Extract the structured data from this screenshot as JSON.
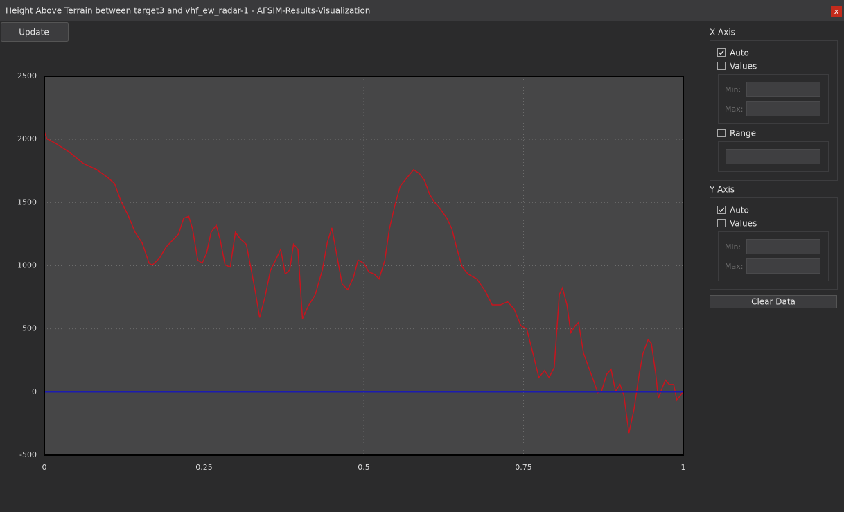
{
  "window": {
    "title": "Height Above Terrain between target3 and vhf_ew_radar-1 - AFSIM-Results-Visualization",
    "close": "x"
  },
  "toolbar": {
    "update": "Update"
  },
  "chart_data": {
    "type": "line",
    "series": [
      {
        "color": "#c8141e",
        "x": [
          0,
          0.004,
          0.017,
          0.039,
          0.061,
          0.082,
          0.099,
          0.11,
          0.12,
          0.131,
          0.142,
          0.153,
          0.164,
          0.169,
          0.18,
          0.191,
          0.21,
          0.218,
          0.226,
          0.232,
          0.24,
          0.247,
          0.254,
          0.261,
          0.269,
          0.275,
          0.283,
          0.291,
          0.299,
          0.307,
          0.316,
          0.323,
          0.33,
          0.337,
          0.345,
          0.354,
          0.362,
          0.37,
          0.377,
          0.384,
          0.39,
          0.397,
          0.404,
          0.413,
          0.424,
          0.435,
          0.443,
          0.45,
          0.458,
          0.466,
          0.475,
          0.484,
          0.491,
          0.5,
          0.508,
          0.516,
          0.524,
          0.533,
          0.54,
          0.549,
          0.557,
          0.568,
          0.578,
          0.587,
          0.595,
          0.603,
          0.611,
          0.619,
          0.63,
          0.638,
          0.646,
          0.654,
          0.663,
          0.677,
          0.69,
          0.701,
          0.714,
          0.725,
          0.735,
          0.746,
          0.755,
          0.766,
          0.774,
          0.783,
          0.79,
          0.798,
          0.806,
          0.811,
          0.818,
          0.824,
          0.831,
          0.836,
          0.844,
          0.852,
          0.86,
          0.866,
          0.872,
          0.88,
          0.887,
          0.894,
          0.901,
          0.907,
          0.915,
          0.923,
          0.931,
          0.937,
          0.945,
          0.95,
          0.957,
          0.961,
          0.966,
          0.972,
          0.978,
          0.985,
          0.99,
          1
        ],
        "values": [
          2060,
          2005,
          1970,
          1900,
          1810,
          1760,
          1700,
          1650,
          1510,
          1400,
          1265,
          1180,
          1020,
          1005,
          1060,
          1150,
          1250,
          1375,
          1390,
          1290,
          1045,
          1020,
          1100,
          1265,
          1320,
          1210,
          1005,
          990,
          1265,
          1210,
          1170,
          990,
          800,
          590,
          745,
          965,
          1045,
          1130,
          935,
          965,
          1170,
          1130,
          580,
          680,
          770,
          965,
          1185,
          1300,
          1075,
          855,
          810,
          910,
          1045,
          1020,
          950,
          935,
          895,
          1045,
          1290,
          1485,
          1630,
          1700,
          1760,
          1730,
          1675,
          1565,
          1500,
          1455,
          1375,
          1290,
          1130,
          990,
          935,
          895,
          800,
          690,
          690,
          715,
          660,
          525,
          500,
          280,
          115,
          170,
          115,
          195,
          770,
          825,
          690,
          470,
          525,
          550,
          305,
          195,
          85,
          -5,
          5,
          140,
          180,
          5,
          60,
          -25,
          -325,
          -135,
          140,
          305,
          415,
          385,
          140,
          -50,
          20,
          95,
          60,
          60,
          -65,
          5
        ]
      },
      {
        "color": "#1c1cb0",
        "x": [
          0,
          1
        ],
        "values": [
          0,
          0
        ]
      }
    ],
    "xlim": [
      0,
      1
    ],
    "ylim": [
      -500,
      2500
    ],
    "xticks": [
      0,
      0.25,
      0.5,
      0.75,
      1
    ],
    "yticks": [
      -500,
      0,
      500,
      1000,
      1500,
      2000,
      2500
    ],
    "grid": true
  },
  "panel": {
    "x_axis": {
      "title": "X Axis",
      "auto": {
        "label": "Auto",
        "checked": true
      },
      "values": {
        "label": "Values",
        "checked": false
      },
      "min": "Min:",
      "max": "Max:",
      "range": {
        "label": "Range",
        "checked": false
      }
    },
    "y_axis": {
      "title": "Y Axis",
      "auto": {
        "label": "Auto",
        "checked": true
      },
      "values": {
        "label": "Values",
        "checked": false
      },
      "min": "Min:",
      "max": "Max:"
    },
    "clear": "Clear Data"
  }
}
